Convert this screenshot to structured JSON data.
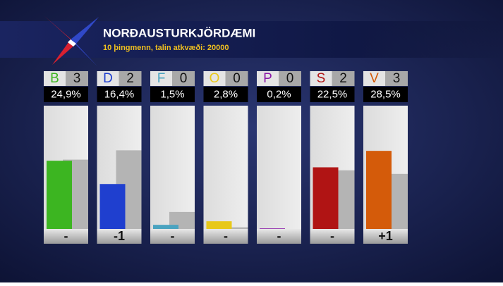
{
  "chart_data": {
    "type": "bar",
    "title": "NORÐAUSTURKJÖRDÆMI",
    "subtitle": "10 þingmenn, talin atkvæði: 20000",
    "categories": [
      "B",
      "D",
      "F",
      "O",
      "P",
      "S",
      "V"
    ],
    "category_colors": [
      "#3cb521",
      "#1f3fcf",
      "#4aa3c0",
      "#e8c81a",
      "#8a1aa8",
      "#b01414",
      "#d45b0a"
    ],
    "seats": [
      3,
      2,
      0,
      0,
      0,
      2,
      3
    ],
    "values": [
      24.9,
      16.4,
      1.5,
      2.8,
      0.2,
      22.5,
      28.5
    ],
    "value_labels": [
      "24,9%",
      "16,4%",
      "1,5%",
      "2,8%",
      "0,2%",
      "22,5%",
      "28,5%"
    ],
    "previous_values": [
      25.3,
      28.7,
      6.2,
      0.6,
      0,
      21.4,
      20.1
    ],
    "previous_color": "#b4b4b4",
    "changes": [
      "-",
      "-1",
      "-",
      "-",
      "-",
      "-",
      "+1"
    ],
    "ylim": [
      0,
      45
    ]
  }
}
